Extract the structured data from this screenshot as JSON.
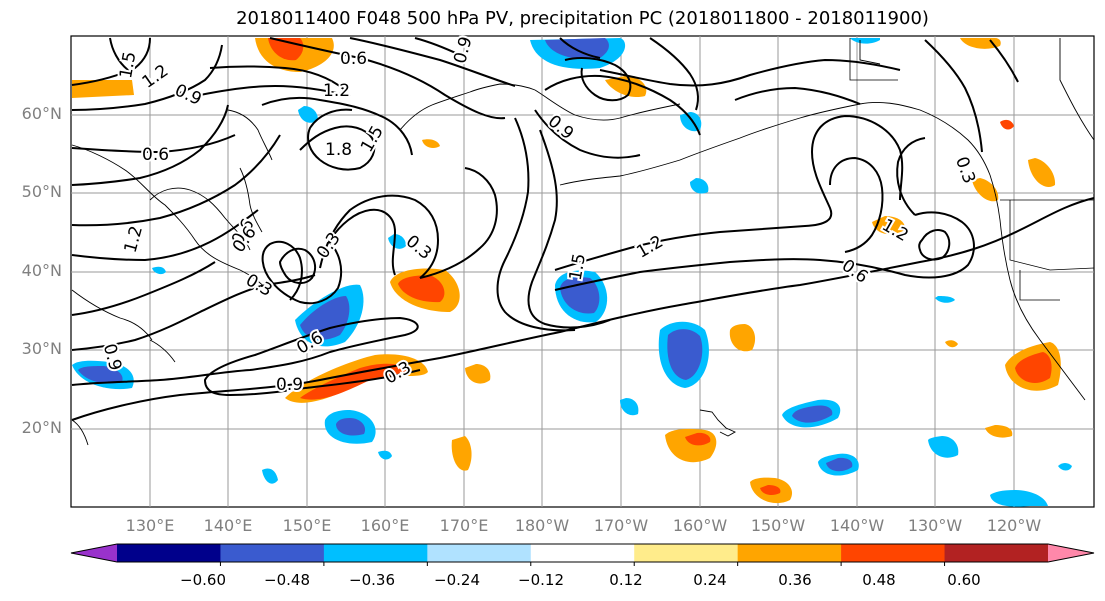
{
  "title": "2018011400 F048 500 hPa PV, precipitation PC (2018011800 - 2018011900)",
  "map": {
    "lat_labels": [
      "60°N",
      "50°N",
      "40°N",
      "30°N",
      "20°N"
    ],
    "lon_labels": [
      "130°E",
      "140°E",
      "150°E",
      "160°E",
      "170°E",
      "180°W",
      "170°W",
      "160°W",
      "150°W",
      "140°W",
      "130°W",
      "120°W"
    ],
    "contour_labels": [
      "1.5",
      "1.2",
      "0.6",
      "0.9",
      "0.6",
      "0.9",
      "1.2",
      "1.8",
      "1.5",
      "0.6",
      "1.2",
      "0.3",
      "0.9",
      "0.6",
      "0.3",
      "0.9",
      "0.3",
      "1.2",
      "1.5",
      "0.6",
      "1.2",
      "0.3",
      "0.9",
      "0.6",
      "0.3"
    ]
  },
  "colorbar": {
    "colors": [
      "#9932cc",
      "#00008b",
      "#3a5bcf",
      "#00bfff",
      "#b0e2ff",
      "#ffffff",
      "#ffec8b",
      "#ffa500",
      "#ff4500",
      "#b22222",
      "#ff88aa"
    ],
    "ticks": [
      "−0.60",
      "−0.48",
      "−0.36",
      "−0.24",
      "−0.12",
      "0.12",
      "0.24",
      "0.36",
      "0.48",
      "0.60"
    ]
  }
}
